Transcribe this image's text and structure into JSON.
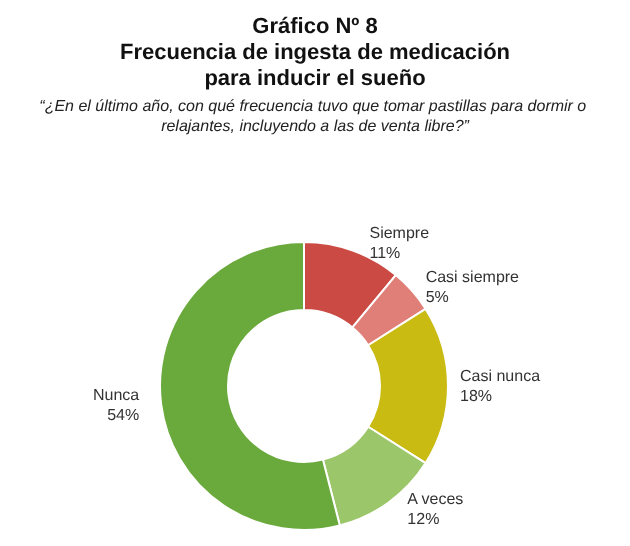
{
  "chart_data": {
    "type": "donut",
    "title": "Gráfico Nº 8\nFrecuencia de ingesta de medicación\npara inducir el sueño",
    "subtitle": "“¿En el último año, con qué frecuencia tuvo que tomar pastillas para dormir o relajantes, incluyendo a las de venta libre?”",
    "categories": [
      "Siempre",
      "Casi siempre",
      "Casi nunca",
      "A veces",
      "Nunca"
    ],
    "values": [
      11,
      5,
      18,
      12,
      54
    ],
    "colors": [
      "#cc4a44",
      "#e07f78",
      "#c9bb12",
      "#9cc66a",
      "#6aaa3c"
    ],
    "value_labels": [
      "11%",
      "5%",
      "18%",
      "12%",
      "54%"
    ],
    "legend": false
  }
}
